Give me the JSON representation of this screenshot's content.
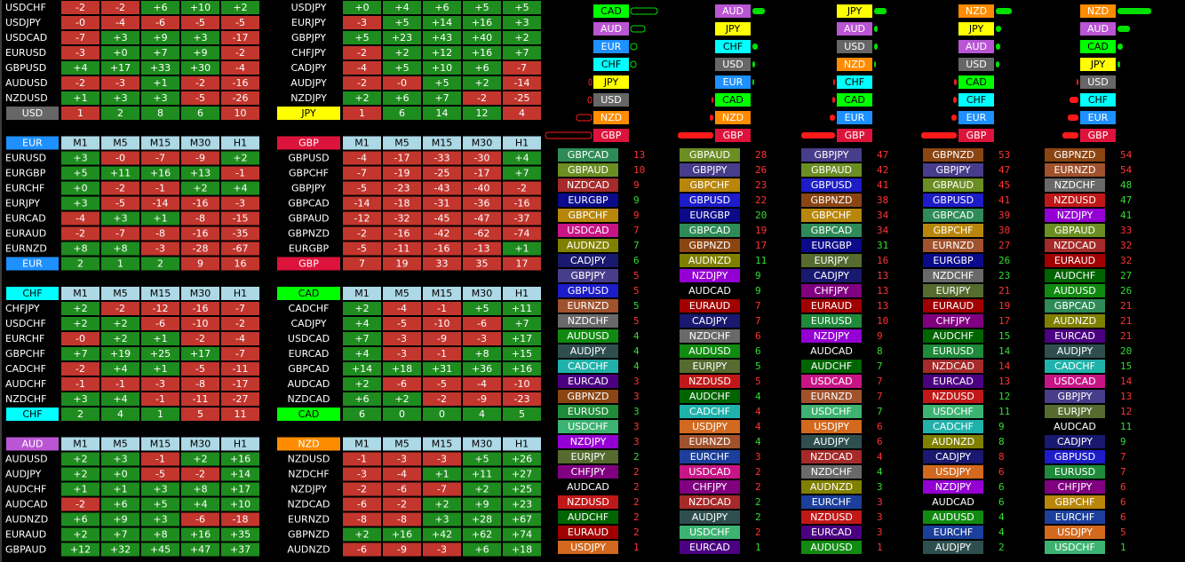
{
  "columns": [
    "M1",
    "M5",
    "M15",
    "M30",
    "H1"
  ],
  "positive_color": "#1f8c1f",
  "negative_color": "#c2362e",
  "currency_colors": {
    "USD": {
      "bg": "#666666",
      "fg": "#ffffff"
    },
    "JPY": {
      "bg": "#ffff00",
      "fg": "#000000"
    },
    "EUR": {
      "bg": "#1e90ff",
      "fg": "#ffffff"
    },
    "GBP": {
      "bg": "#dc143c",
      "fg": "#ffffff"
    },
    "CHF": {
      "bg": "#00ffff",
      "fg": "#000000"
    },
    "CAD": {
      "bg": "#00ff00",
      "fg": "#000000"
    },
    "AUD": {
      "bg": "#ba55d3",
      "fg": "#ffffff"
    },
    "NZD": {
      "bg": "#ff8c00",
      "fg": "#ffffff"
    }
  },
  "tables": [
    {
      "currency": "USD",
      "header": false,
      "rows": [
        [
          "USDCHF",
          "-2",
          "-2",
          "+6",
          "+10",
          "+2"
        ],
        [
          "USDJPY",
          "-0",
          "-4",
          "-6",
          "-5",
          "-5"
        ],
        [
          "USDCAD",
          "-7",
          "+3",
          "+9",
          "+3",
          "-17"
        ],
        [
          "EURUSD",
          "-3",
          "+0",
          "+7",
          "+9",
          "-2"
        ],
        [
          "GBPUSD",
          "+4",
          "+17",
          "+33",
          "+30",
          "-4"
        ],
        [
          "AUDUSD",
          "-2",
          "-3",
          "+1",
          "-2",
          "-16"
        ],
        [
          "NZDUSD",
          "+1",
          "+3",
          "+3",
          "-5",
          "-26"
        ]
      ],
      "summary": [
        "1",
        "2",
        "8",
        "6",
        "10"
      ],
      "summary_colors": [
        "#c2362e",
        "#1f8c1f",
        "#1f8c1f",
        "#1f8c1f",
        "#c2362e"
      ]
    },
    {
      "currency": "JPY",
      "header": false,
      "rows": [
        [
          "USDJPY",
          "+0",
          "+4",
          "+6",
          "+5",
          "+5"
        ],
        [
          "EURJPY",
          "-3",
          "+5",
          "+14",
          "+16",
          "+3"
        ],
        [
          "GBPJPY",
          "+5",
          "+23",
          "+43",
          "+40",
          "+2"
        ],
        [
          "CHFJPY",
          "-2",
          "+2",
          "+12",
          "+16",
          "+7"
        ],
        [
          "CADJPY",
          "-4",
          "+5",
          "+10",
          "+6",
          "-7"
        ],
        [
          "AUDJPY",
          "-2",
          "-0",
          "+5",
          "+2",
          "-14"
        ],
        [
          "NZDJPY",
          "+2",
          "+6",
          "+7",
          "-2",
          "-25"
        ]
      ],
      "summary": [
        "1",
        "6",
        "14",
        "12",
        "4"
      ],
      "summary_colors": [
        "#c2362e",
        "#1f8c1f",
        "#1f8c1f",
        "#1f8c1f",
        "#c2362e"
      ]
    },
    {
      "currency": "EUR",
      "header": true,
      "rows": [
        [
          "EURUSD",
          "+3",
          "-0",
          "-7",
          "-9",
          "+2"
        ],
        [
          "EURGBP",
          "+5",
          "+11",
          "+16",
          "+13",
          "-1"
        ],
        [
          "EURCHF",
          "+0",
          "-2",
          "-1",
          "+2",
          "+4"
        ],
        [
          "EURJPY",
          "+3",
          "-5",
          "-14",
          "-16",
          "-3"
        ],
        [
          "EURCAD",
          "-4",
          "+3",
          "+1",
          "-8",
          "-15"
        ],
        [
          "EURAUD",
          "-2",
          "-7",
          "-8",
          "-16",
          "-35"
        ],
        [
          "EURNZD",
          "+8",
          "+8",
          "-3",
          "-28",
          "-67"
        ]
      ],
      "summary": [
        "2",
        "1",
        "2",
        "9",
        "16"
      ],
      "summary_colors": [
        "#1f8c1f",
        "#1f8c1f",
        "#1f8c1f",
        "#c2362e",
        "#c2362e"
      ]
    },
    {
      "currency": "GBP",
      "header": true,
      "rows": [
        [
          "GBPUSD",
          "-4",
          "-17",
          "-33",
          "-30",
          "+4"
        ],
        [
          "GBPCHF",
          "-7",
          "-19",
          "-25",
          "-17",
          "+7"
        ],
        [
          "GBPJPY",
          "-5",
          "-23",
          "-43",
          "-40",
          "-2"
        ],
        [
          "GBPCAD",
          "-14",
          "-18",
          "-31",
          "-36",
          "-16"
        ],
        [
          "GBPAUD",
          "-12",
          "-32",
          "-45",
          "-47",
          "-37"
        ],
        [
          "GBPNZD",
          "-2",
          "-16",
          "-42",
          "-62",
          "-74"
        ],
        [
          "EURGBP",
          "-5",
          "-11",
          "-16",
          "-13",
          "+1"
        ]
      ],
      "summary": [
        "7",
        "19",
        "33",
        "35",
        "17"
      ],
      "summary_colors": [
        "#c2362e",
        "#c2362e",
        "#c2362e",
        "#c2362e",
        "#c2362e"
      ]
    },
    {
      "currency": "CHF",
      "header": true,
      "rows": [
        [
          "CHFJPY",
          "+2",
          "-2",
          "-12",
          "-16",
          "-7"
        ],
        [
          "USDCHF",
          "+2",
          "+2",
          "-6",
          "-10",
          "-2"
        ],
        [
          "EURCHF",
          "-0",
          "+2",
          "+1",
          "-2",
          "-4"
        ],
        [
          "GBPCHF",
          "+7",
          "+19",
          "+25",
          "+17",
          "-7"
        ],
        [
          "CADCHF",
          "-2",
          "+4",
          "+1",
          "-5",
          "-11"
        ],
        [
          "AUDCHF",
          "-1",
          "-1",
          "-3",
          "-8",
          "-17"
        ],
        [
          "NZDCHF",
          "+3",
          "+4",
          "-1",
          "-11",
          "-27"
        ]
      ],
      "summary": [
        "2",
        "4",
        "1",
        "5",
        "11"
      ],
      "summary_colors": [
        "#1f8c1f",
        "#1f8c1f",
        "#1f8c1f",
        "#c2362e",
        "#c2362e"
      ]
    },
    {
      "currency": "CAD",
      "header": true,
      "rows": [
        [
          "CADCHF",
          "+2",
          "-4",
          "-1",
          "+5",
          "+11"
        ],
        [
          "CADJPY",
          "+4",
          "-5",
          "-10",
          "-6",
          "+7"
        ],
        [
          "USDCAD",
          "+7",
          "-3",
          "-9",
          "-3",
          "+17"
        ],
        [
          "EURCAD",
          "+4",
          "-3",
          "-1",
          "+8",
          "+15"
        ],
        [
          "GBPCAD",
          "+14",
          "+18",
          "+31",
          "+36",
          "+16"
        ],
        [
          "AUDCAD",
          "+2",
          "-6",
          "-5",
          "-4",
          "-10"
        ],
        [
          "NZDCAD",
          "+6",
          "+2",
          "-2",
          "-9",
          "-23"
        ]
      ],
      "summary": [
        "6",
        "0",
        "0",
        "4",
        "5"
      ],
      "summary_colors": [
        "#1f8c1f",
        "#1f8c1f",
        "#1f8c1f",
        "#1f8c1f",
        "#1f8c1f"
      ]
    },
    {
      "currency": "AUD",
      "header": true,
      "rows": [
        [
          "AUDUSD",
          "+2",
          "+3",
          "-1",
          "+2",
          "+16"
        ],
        [
          "AUDJPY",
          "+2",
          "+0",
          "-5",
          "-2",
          "+14"
        ],
        [
          "AUDCHF",
          "+1",
          "+1",
          "+3",
          "+8",
          "+17"
        ],
        [
          "AUDCAD",
          "-2",
          "+6",
          "+5",
          "+4",
          "+10"
        ],
        [
          "AUDNZD",
          "+6",
          "+9",
          "+3",
          "-6",
          "-18"
        ],
        [
          "EURAUD",
          "+2",
          "+7",
          "+8",
          "+16",
          "+35"
        ],
        [
          "GBPAUD",
          "+12",
          "+32",
          "+45",
          "+47",
          "+37"
        ]
      ]
    },
    {
      "currency": "NZD",
      "header": true,
      "rows": [
        [
          "NZDUSD",
          "-1",
          "-3",
          "-3",
          "+5",
          "+26"
        ],
        [
          "NZDCHF",
          "-3",
          "-4",
          "+1",
          "+11",
          "+27"
        ],
        [
          "NZDJPY",
          "-2",
          "-6",
          "-7",
          "+2",
          "+25"
        ],
        [
          "NZDCAD",
          "-6",
          "-2",
          "+2",
          "+9",
          "+23"
        ],
        [
          "EURNZD",
          "-8",
          "-8",
          "+3",
          "+28",
          "+67"
        ],
        [
          "GBPNZD",
          "+2",
          "+16",
          "+42",
          "+62",
          "+74"
        ],
        [
          "AUDNZD",
          "-6",
          "-9",
          "-3",
          "+6",
          "+18"
        ]
      ]
    }
  ],
  "bar_colors": {
    "positive": "#00e000",
    "negative": "#ff1a1a"
  },
  "strength": [
    {
      "hollow": true,
      "currencies": [
        "CAD",
        "AUD",
        "EUR",
        "CHF",
        "JPY",
        "USD",
        "NZD",
        "GBP"
      ],
      "values": [
        30,
        16,
        7,
        6,
        -3,
        -4,
        -17,
        -52
      ]
    },
    {
      "hollow": false,
      "currencies": [
        "AUD",
        "JPY",
        "CHF",
        "USD",
        "EUR",
        "CAD",
        "NZD",
        "GBP"
      ],
      "values": [
        14,
        0,
        6,
        3,
        2,
        -2,
        -4,
        -40
      ]
    },
    {
      "hollow": false,
      "currencies": [
        "JPY",
        "AUD",
        "USD",
        "NZD",
        "CHF",
        "CAD",
        "EUR",
        "GBP"
      ],
      "values": [
        14,
        4,
        4,
        2,
        -2,
        -3,
        -6,
        -38
      ]
    },
    {
      "hollow": false,
      "currencies": [
        "NZD",
        "JPY",
        "AUD",
        "USD",
        "CAD",
        "CHF",
        "EUR",
        "GBP"
      ],
      "values": [
        18,
        6,
        5,
        4,
        -3,
        -4,
        -6,
        -40
      ]
    },
    {
      "hollow": false,
      "currencies": [
        "NZD",
        "AUD",
        "CAD",
        "JPY",
        "USD",
        "CHF",
        "EUR",
        "GBP"
      ],
      "values": [
        38,
        14,
        6,
        3,
        -2,
        -10,
        -12,
        -18
      ]
    }
  ],
  "pair_colors": {
    "EURUSD": "#1f8a3a",
    "GBPUSD": "#1c1cc8",
    "USDJPY": "#d2691e",
    "USDCHF": "#3cb371",
    "USDCAD": "#c71585",
    "AUDUSD": "#108a10",
    "NZDUSD": "#c01818",
    "EURGBP": "#0a0a8a",
    "EURJPY": "#556b2f",
    "EURCHF": "#1c3f9c",
    "EURCAD": "#4b0082",
    "EURAUD": "#a00000",
    "EURNZD": "#a0522d",
    "GBPJPY": "#483d8b",
    "GBPCHF": "#b8860b",
    "GBPCAD": "#2e8b57",
    "GBPAUD": "#6b8e23",
    "GBPNZD": "#8b4513",
    "CHFJPY": "#800080",
    "CADCHF": "#20b2aa",
    "CADJPY": "#191970",
    "AUDJPY": "#2f4f4f",
    "AUDCHF": "#006400",
    "AUDCAD": "#000000",
    "AUDNZD": "#808000",
    "NZDJPY": "#9400d3",
    "NZDCHF": "#696969",
    "NZDCAD": "#a52a2a"
  },
  "value_colors": {
    "up": "#33dd33",
    "down": "#ff3333"
  },
  "rankings": [
    {
      "pairs": [
        "GBPCAD",
        "GBPAUD",
        "NZDCAD",
        "EURGBP",
        "GBPCHF",
        "USDCAD",
        "AUDNZD",
        "CADJPY",
        "GBPJPY",
        "GBPUSD",
        "EURNZD",
        "NZDCHF",
        "AUDUSD",
        "AUDJPY",
        "CADCHF",
        "EURCAD",
        "GBPNZD",
        "EURUSD",
        "USDCHF",
        "NZDJPY",
        "EURJPY",
        "CHFJPY",
        "AUDCAD",
        "NZDUSD",
        "AUDCHF",
        "EURAUD",
        "USDJPY"
      ],
      "values": [
        13,
        10,
        9,
        9,
        9,
        7,
        7,
        6,
        5,
        5,
        5,
        5,
        4,
        4,
        4,
        3,
        3,
        3,
        3,
        3,
        2,
        2,
        2,
        2,
        2,
        2,
        1
      ],
      "directions": [
        "down",
        "down",
        "down",
        "up",
        "down",
        "down",
        "up",
        "up",
        "down",
        "down",
        "up",
        "down",
        "up",
        "up",
        "up",
        "down",
        "down",
        "up",
        "down",
        "down",
        "up",
        "down",
        "down",
        "down",
        "down",
        "down",
        "down"
      ]
    },
    {
      "pairs": [
        "GBPAUD",
        "GBPJPY",
        "GBPCHF",
        "GBPUSD",
        "EURGBP",
        "GBPCAD",
        "GBPNZD",
        "AUDNZD",
        "NZDJPY",
        "AUDCAD",
        "EURAUD",
        "CADJPY",
        "NZDCHF",
        "AUDUSD",
        "EURJPY",
        "NZDUSD",
        "AUDCHF",
        "CADCHF",
        "USDJPY",
        "EURNZD",
        "EURCHF",
        "USDCAD",
        "CHFJPY",
        "NZDCAD",
        "AUDJPY",
        "USDCHF",
        "EURCAD"
      ],
      "values": [
        28,
        26,
        23,
        22,
        20,
        19,
        17,
        11,
        9,
        9,
        7,
        7,
        6,
        6,
        5,
        5,
        4,
        4,
        4,
        4,
        3,
        2,
        2,
        2,
        2,
        2,
        1
      ],
      "directions": [
        "down",
        "down",
        "down",
        "down",
        "up",
        "down",
        "down",
        "up",
        "up",
        "up",
        "down",
        "down",
        "down",
        "up",
        "up",
        "down",
        "up",
        "down",
        "down",
        "up",
        "down",
        "down",
        "down",
        "up",
        "up",
        "down",
        "up"
      ]
    },
    {
      "pairs": [
        "GBPJPY",
        "GBPAUD",
        "GBPUSD",
        "GBPNZD",
        "GBPCHF",
        "GBPCAD",
        "EURGBP",
        "EURJPY",
        "CADJPY",
        "CHFJPY",
        "EURAUD",
        "EURUSD",
        "NZDJPY",
        "AUDCAD",
        "AUDCHF",
        "USDCAD",
        "EURNZD",
        "USDCHF",
        "USDJPY",
        "AUDJPY",
        "NZDCAD",
        "NZDCHF",
        "AUDNZD",
        "EURCHF",
        "NZDUSD",
        "EURCAD",
        "AUDUSD"
      ],
      "values": [
        47,
        42,
        41,
        38,
        34,
        34,
        31,
        16,
        13,
        13,
        13,
        10,
        9,
        8,
        7,
        7,
        7,
        7,
        6,
        6,
        4,
        4,
        3,
        3,
        3,
        3,
        1
      ],
      "directions": [
        "down",
        "down",
        "down",
        "down",
        "down",
        "down",
        "up",
        "down",
        "down",
        "down",
        "down",
        "down",
        "down",
        "up",
        "up",
        "down",
        "down",
        "up",
        "down",
        "down",
        "down",
        "up",
        "up",
        "down",
        "down",
        "down",
        "down"
      ]
    },
    {
      "pairs": [
        "GBPNZD",
        "GBPJPY",
        "GBPAUD",
        "GBPUSD",
        "GBPCAD",
        "GBPCHF",
        "EURNZD",
        "EURGBP",
        "NZDCHF",
        "EURJPY",
        "EURAUD",
        "CHFJPY",
        "AUDCHF",
        "EURUSD",
        "NZDCAD",
        "EURCAD",
        "NZDUSD",
        "USDCHF",
        "CADCHF",
        "AUDNZD",
        "CADJPY",
        "USDJPY",
        "NZDJPY",
        "AUDCAD",
        "AUDUSD",
        "EURCHF",
        "AUDJPY"
      ],
      "values": [
        53,
        47,
        45,
        41,
        39,
        30,
        27,
        26,
        23,
        21,
        19,
        17,
        15,
        14,
        14,
        13,
        12,
        11,
        9,
        8,
        8,
        6,
        6,
        6,
        4,
        4,
        2
      ],
      "directions": [
        "down",
        "down",
        "down",
        "down",
        "down",
        "down",
        "down",
        "up",
        "up",
        "down",
        "down",
        "down",
        "up",
        "up",
        "down",
        "down",
        "up",
        "up",
        "up",
        "up",
        "down",
        "down",
        "up",
        "up",
        "up",
        "up",
        "up"
      ]
    },
    {
      "pairs": [
        "GBPNZD",
        "EURNZD",
        "NZDCHF",
        "NZDUSD",
        "NZDJPY",
        "GBPAUD",
        "NZDCAD",
        "EURAUD",
        "AUDCHF",
        "AUDUSD",
        "GBPCAD",
        "AUDNZD",
        "EURCAD",
        "AUDJPY",
        "CADCHF",
        "USDCAD",
        "GBPJPY",
        "EURJPY",
        "AUDCAD",
        "CADJPY",
        "GBPUSD",
        "EURUSD",
        "CHFJPY",
        "GBPCHF",
        "EURCHF",
        "USDJPY",
        "USDCHF"
      ],
      "values": [
        54,
        54,
        48,
        47,
        41,
        33,
        32,
        32,
        27,
        26,
        21,
        21,
        21,
        20,
        15,
        14,
        13,
        12,
        11,
        9,
        7,
        7,
        6,
        6,
        6,
        5,
        1
      ],
      "directions": [
        "down",
        "down",
        "up",
        "up",
        "up",
        "down",
        "down",
        "down",
        "up",
        "up",
        "down",
        "down",
        "down",
        "up",
        "up",
        "down",
        "down",
        "down",
        "up",
        "up",
        "down",
        "down",
        "down",
        "down",
        "down",
        "down",
        "up"
      ]
    }
  ]
}
